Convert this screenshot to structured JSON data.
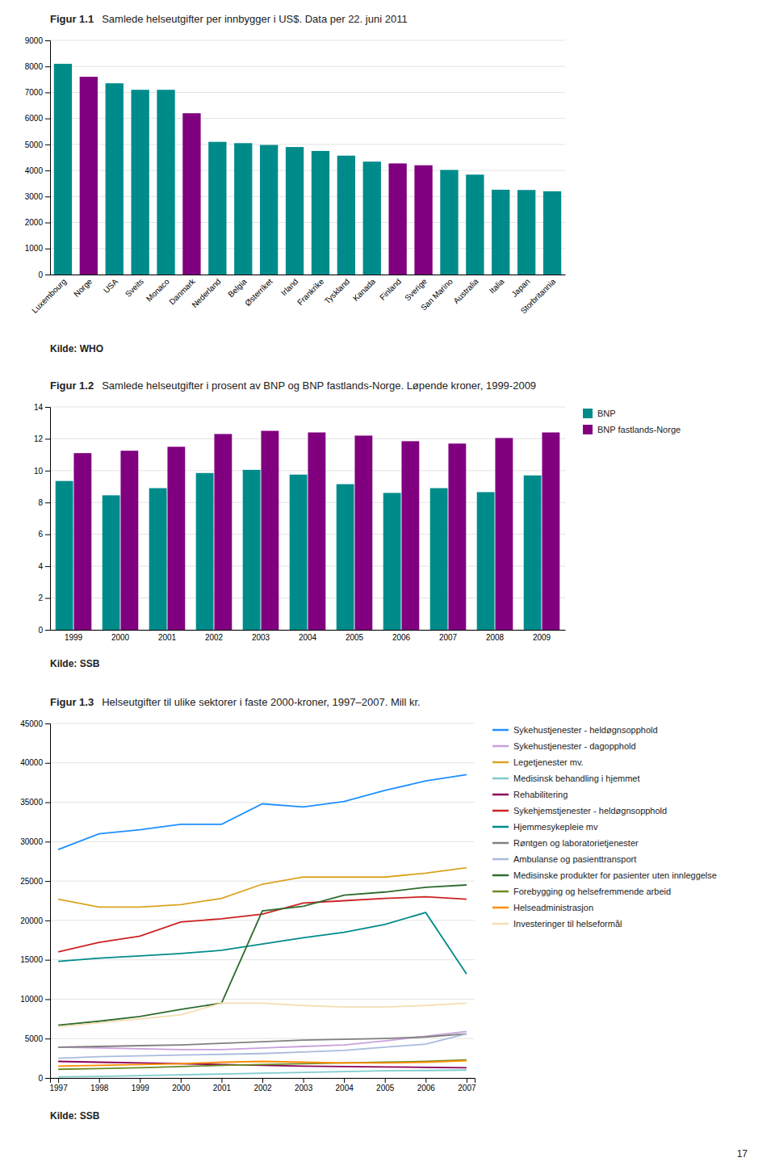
{
  "page_number": "17",
  "chart_data": [
    {
      "type": "bar",
      "title": "Figur 1.1",
      "subtitle": "Samlede helseutgifter per innbygger i US$. Data per 22. juni 2011",
      "source": "Kilde: WHO",
      "categories": [
        "Luxembourg",
        "Norge",
        "USA",
        "Sveits",
        "Monaco",
        "Danmark",
        "Nederland",
        "Belgia",
        "Østerriket",
        "Irland",
        "Frankrike",
        "Tyskland",
        "Kanada",
        "Finland",
        "Sverige",
        "San Marino",
        "Australia",
        "Italia",
        "Japan",
        "Storbritannia"
      ],
      "values": [
        8100,
        7600,
        7350,
        7100,
        7100,
        6200,
        5100,
        5050,
        4980,
        4900,
        4750,
        4570,
        4340,
        4270,
        4200,
        4020,
        3840,
        3260,
        3250,
        3200
      ],
      "colors": [
        "#008B8B",
        "#800080",
        "#008B8B",
        "#008B8B",
        "#008B8B",
        "#800080",
        "#008B8B",
        "#008B8B",
        "#008B8B",
        "#008B8B",
        "#008B8B",
        "#008B8B",
        "#008B8B",
        "#800080",
        "#800080",
        "#008B8B",
        "#008B8B",
        "#008B8B",
        "#008B8B",
        "#008B8B"
      ],
      "ylim": [
        0,
        9000
      ],
      "yticks": [
        0,
        1000,
        2000,
        3000,
        4000,
        5000,
        6000,
        7000,
        8000,
        9000
      ],
      "grid": true
    },
    {
      "type": "bar",
      "title": "Figur 1.2",
      "subtitle": "Samlede helseutgifter i prosent av BNP og BNP fastlands-Norge. Løpende kroner, 1999-2009",
      "source": "Kilde: SSB",
      "categories": [
        "1999",
        "2000",
        "2001",
        "2002",
        "2003",
        "2004",
        "2005",
        "2006",
        "2007",
        "2008",
        "2009"
      ],
      "series": [
        {
          "name": "BNP",
          "color": "#008B8B",
          "values": [
            9.35,
            8.45,
            8.9,
            9.85,
            10.05,
            9.75,
            9.15,
            8.6,
            8.9,
            8.65,
            9.7
          ]
        },
        {
          "name": "BNP fastlands-Norge",
          "color": "#800080",
          "values": [
            11.1,
            11.25,
            11.5,
            12.3,
            12.5,
            12.4,
            12.2,
            11.85,
            11.7,
            12.05,
            12.4
          ]
        }
      ],
      "ylim": [
        0,
        14
      ],
      "yticks": [
        0,
        2,
        4,
        6,
        8,
        10,
        12,
        14
      ],
      "grid": true,
      "legend": "right"
    },
    {
      "type": "line",
      "title": "Figur 1.3",
      "subtitle": "Helseutgifter til ulike sektorer i faste 2000-kroner, 1997–2007. Mill kr.",
      "source": "Kilde: SSB",
      "x": [
        1997,
        1998,
        1999,
        2000,
        2001,
        2002,
        2003,
        2004,
        2005,
        2006,
        2007
      ],
      "xlim": [
        1996.8,
        2007.2
      ],
      "xticks": [
        1997,
        1998,
        1999,
        2000,
        2001,
        2002,
        2003,
        2004,
        2005,
        2006,
        2007
      ],
      "ylim": [
        0,
        45000
      ],
      "yticks": [
        0,
        5000,
        10000,
        15000,
        20000,
        25000,
        30000,
        35000,
        40000,
        45000
      ],
      "series": [
        {
          "name": "Sykehustjenester - heldøgnsopphold",
          "color": "#1E90FF",
          "values": [
            29000,
            31000,
            31500,
            32200,
            32200,
            34800,
            34400,
            35100,
            36500,
            37700,
            38500
          ]
        },
        {
          "name": "Sykehustjenester - dagopphold",
          "color": "#C9A0DC",
          "values": [
            3900,
            3800,
            3700,
            3600,
            3600,
            3800,
            4000,
            4200,
            4700,
            5300,
            5900
          ]
        },
        {
          "name": "Legetjenester mv.",
          "color": "#DAA520",
          "values": [
            22700,
            21700,
            21700,
            22000,
            22800,
            24600,
            25500,
            25500,
            25500,
            26000,
            26700
          ]
        },
        {
          "name": "Medisinsk behandling i hjemmet",
          "color": "#7FCCCC",
          "values": [
            150,
            200,
            300,
            400,
            500,
            600,
            700,
            800,
            900,
            950,
            1000
          ]
        },
        {
          "name": "Rehabilitering",
          "color": "#8B0057",
          "values": [
            2100,
            2000,
            1900,
            1800,
            1700,
            1600,
            1500,
            1450,
            1400,
            1350,
            1300
          ]
        },
        {
          "name": "Sykehjemstjenester - heldøgnsopphold",
          "color": "#CC2222",
          "values": [
            16000,
            17200,
            18000,
            19800,
            20200,
            20800,
            22200,
            22500,
            22800,
            23000,
            22700
          ]
        },
        {
          "name": "Hjemmesykepleie mv",
          "color": "#008B8B",
          "values": [
            14800,
            15200,
            15500,
            15800,
            16200,
            17000,
            17800,
            18500,
            19500,
            21000,
            13200
          ]
        },
        {
          "name": "Røntgen og laboratorietjenester",
          "color": "#808080",
          "values": [
            3900,
            4000,
            4100,
            4200,
            4400,
            4600,
            4800,
            4900,
            5000,
            5200,
            5600
          ]
        },
        {
          "name": "Ambulanse og pasienttransport",
          "color": "#AABBDD",
          "values": [
            2500,
            2700,
            2800,
            2900,
            3000,
            3100,
            3300,
            3500,
            3900,
            4300,
            5600
          ]
        },
        {
          "name": "Medisinske produkter for pasienter uten innleggelse",
          "color": "#2E6B2E",
          "values": [
            6700,
            7200,
            7800,
            8700,
            9500,
            21200,
            21800,
            23200,
            23600,
            24200,
            24500
          ]
        },
        {
          "name": "Forebygging og helsefremmende arbeid",
          "color": "#6B8E23",
          "values": [
            1100,
            1200,
            1300,
            1450,
            1600,
            1700,
            1800,
            1900,
            2000,
            2100,
            2300
          ]
        },
        {
          "name": "Helseadministrasjon",
          "color": "#FF8C00",
          "values": [
            1500,
            1600,
            1700,
            1800,
            2000,
            2100,
            2000,
            1900,
            1900,
            2000,
            2200
          ]
        },
        {
          "name": "Investeringer til helseformål",
          "color": "#F5DEB3",
          "values": [
            6500,
            7000,
            7500,
            8000,
            9500,
            9500,
            9200,
            9000,
            9000,
            9200,
            9500
          ]
        }
      ],
      "grid": true,
      "legend": "right"
    }
  ]
}
